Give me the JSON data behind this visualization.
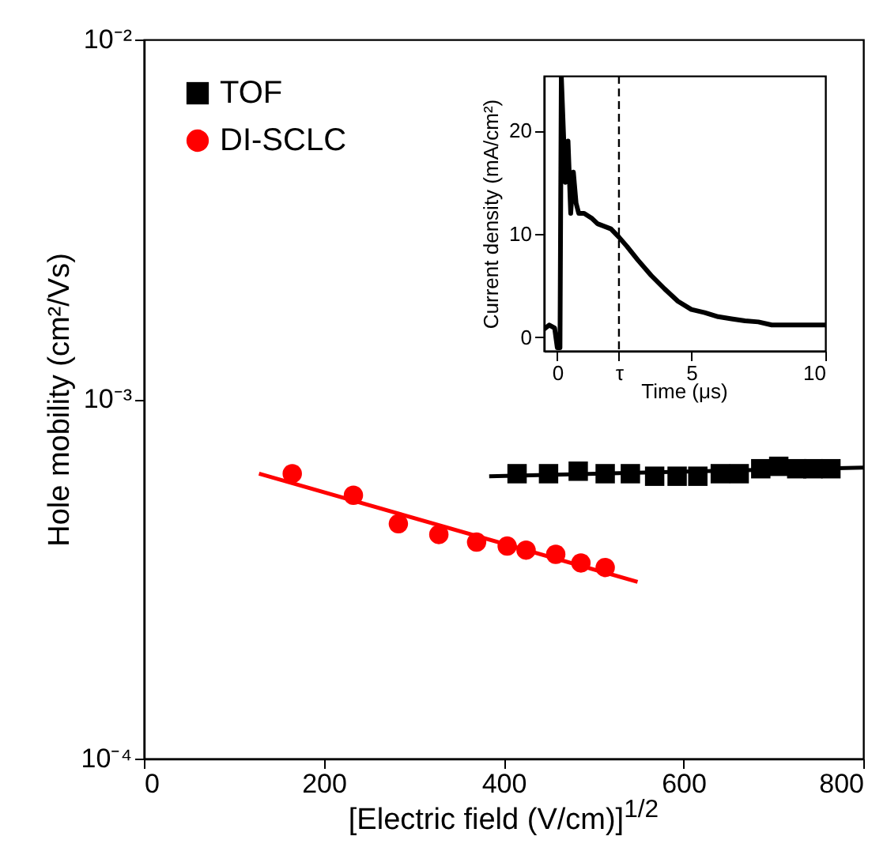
{
  "chart_data": [
    {
      "type": "scatter",
      "xlabel": "[Electric field (V/cm)]$^{1/2}$",
      "ylabel": "Hole mobility (cm²/Vs)",
      "log": "y",
      "xlim": [
        0,
        800
      ],
      "xticks": [
        0,
        200,
        400,
        600,
        800
      ],
      "ylim": [
        0.0001,
        0.01
      ],
      "yticks": [
        {
          "value": 0.0001,
          "label": "10⁻⁴"
        },
        {
          "value": 0.001,
          "label": "10⁻³"
        },
        {
          "value": 0.01,
          "label": "10⁻²"
        }
      ],
      "grid": false,
      "legend": "top left",
      "series": [
        {
          "name": "TOF",
          "color": "#000000",
          "marker": "square",
          "x": [
            415,
            450,
            483,
            513,
            541,
            568,
            593,
            616,
            641,
            662,
            686,
            706,
            726,
            744,
            764
          ],
          "values": [
            0.00062,
            0.00062,
            0.00063,
            0.00062,
            0.00062,
            0.00061,
            0.00061,
            0.00061,
            0.00062,
            0.00062,
            0.00064,
            0.00065,
            0.00064,
            0.00064,
            0.00064
          ]
        },
        {
          "name": "DI-SCLC",
          "color": "#ff0000",
          "marker": "circle",
          "x": [
            165,
            233,
            283,
            328,
            370,
            404,
            425,
            458,
            486,
            513
          ],
          "values": [
            0.00062,
            0.00054,
            0.00045,
            0.00042,
            0.0004,
            0.00039,
            0.00038,
            0.00037,
            0.00035,
            0.00034
          ]
        },
        {
          "type": "line",
          "color": "#000000",
          "x": [
            384,
            800
          ],
          "values": [
            0.00061,
            0.000645
          ]
        },
        {
          "type": "line",
          "color": "#ff0000",
          "x": [
            128,
            549
          ],
          "values": [
            0.00062,
            0.00031
          ]
        }
      ]
    },
    {
      "type": "line",
      "xlabel": "Time (μs)",
      "ylabel": "Current density (mA/cm²)",
      "xlim": [
        -0.5,
        10
      ],
      "xticks": [
        0,
        {
          "value": 2.3,
          "label": "τ"
        },
        5,
        10
      ],
      "ylim": [
        -1.3,
        25.3
      ],
      "yticks": [
        0,
        10,
        20
      ],
      "grid": false,
      "ref_lines": [
        {
          "axis": "x",
          "value": 2.3,
          "color": "#000000",
          "line_style": "dashed"
        }
      ],
      "series": [
        {
          "color": "#000000",
          "x": [
            -0.5,
            -0.3,
            -0.1,
            0,
            0.1,
            0.15,
            0.3,
            0.4,
            0.5,
            0.6,
            0.7,
            0.8,
            1,
            1.3,
            1.5,
            2,
            2.3,
            2.6,
            3,
            3.5,
            4,
            4.5,
            5,
            5.5,
            6,
            6.5,
            7,
            7.5,
            8,
            9,
            10
          ],
          "values": [
            0.8,
            1.2,
            0.9,
            -1,
            -1,
            25.3,
            15,
            19,
            12,
            16,
            13,
            12,
            12,
            11.5,
            11,
            10.5,
            9.7,
            8.8,
            7.5,
            6,
            4.7,
            3.5,
            2.7,
            2.4,
            2,
            1.8,
            1.6,
            1.5,
            1.2,
            1.2,
            1.2
          ]
        }
      ]
    }
  ]
}
